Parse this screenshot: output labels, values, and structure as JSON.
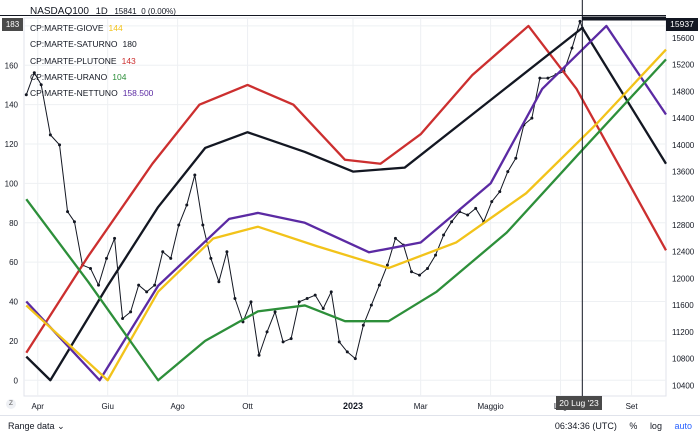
{
  "header": {
    "symbol": "NASDAQ100",
    "interval": "1D",
    "last": "15841",
    "change": "0 (0.00%)"
  },
  "indicators": [
    {
      "name": "CP:MARTE-GIOVE",
      "value": "144",
      "color": "#f2c31a"
    },
    {
      "name": "CP:MARTE-SATURNO",
      "value": "180",
      "color": "#131722"
    },
    {
      "name": "CP:MARTE-PLUTONE",
      "value": "143",
      "color": "#cc2f2f"
    },
    {
      "name": "CP:MARTE-URANO",
      "value": "104",
      "color": "#2d8f3a"
    },
    {
      "name": "CP:MARTE-NETTUNO",
      "value": "158.500",
      "color": "#5b2aa3"
    }
  ],
  "markers": {
    "left_value": "183",
    "price_label": "15937",
    "date_label": "20 Lug '23"
  },
  "bottom_bar": {
    "range_label": "Range data",
    "time": "06:34:36 (UTC)",
    "percent": "%",
    "log": "log",
    "auto": "auto",
    "z_button": "Z"
  },
  "chart_data": {
    "type": "line",
    "x_ticks": [
      "Apr",
      "Giu",
      "Ago",
      "Ott",
      "2023",
      "Mar",
      "Maggio",
      "Lug",
      "Set"
    ],
    "x_tick_dates": [
      "2022-04-01",
      "2022-06-01",
      "2022-08-01",
      "2022-10-01",
      "2023-01-01",
      "2023-03-01",
      "2023-05-01",
      "2023-07-01",
      "2023-09-01"
    ],
    "x_range": [
      "2022-03-20",
      "2023-10-01"
    ],
    "left_axis": {
      "ticks": [
        0,
        20,
        40,
        60,
        80,
        100,
        120,
        140,
        160,
        180
      ],
      "range": [
        -8,
        182
      ]
    },
    "right_axis": {
      "ticks": [
        10400,
        10800,
        11200,
        11600,
        12000,
        12400,
        12800,
        13200,
        13600,
        14000,
        14400,
        14800,
        15200,
        15600
      ],
      "range": [
        10240,
        15840
      ]
    },
    "grid": true,
    "series": [
      {
        "name": "NASDAQ100",
        "type": "price",
        "axis": "right",
        "color": "#131722",
        "points": [
          [
            "2022-03-22",
            14750
          ],
          [
            "2022-03-29",
            15080
          ],
          [
            "2022-04-04",
            14900
          ],
          [
            "2022-04-12",
            14150
          ],
          [
            "2022-04-20",
            14000
          ],
          [
            "2022-04-27",
            13000
          ],
          [
            "2022-05-03",
            12850
          ],
          [
            "2022-05-10",
            12200
          ],
          [
            "2022-05-17",
            12150
          ],
          [
            "2022-05-24",
            11900
          ],
          [
            "2022-05-31",
            12300
          ],
          [
            "2022-06-07",
            12600
          ],
          [
            "2022-06-14",
            11400
          ],
          [
            "2022-06-21",
            11500
          ],
          [
            "2022-06-28",
            11900
          ],
          [
            "2022-07-05",
            11800
          ],
          [
            "2022-07-12",
            11900
          ],
          [
            "2022-07-19",
            12400
          ],
          [
            "2022-07-26",
            12300
          ],
          [
            "2022-08-02",
            12800
          ],
          [
            "2022-08-09",
            13100
          ],
          [
            "2022-08-16",
            13550
          ],
          [
            "2022-08-23",
            12800
          ],
          [
            "2022-08-30",
            12300
          ],
          [
            "2022-09-06",
            11950
          ],
          [
            "2022-09-13",
            12400
          ],
          [
            "2022-09-20",
            11700
          ],
          [
            "2022-09-27",
            11350
          ],
          [
            "2022-10-04",
            11650
          ],
          [
            "2022-10-11",
            10850
          ],
          [
            "2022-10-18",
            11200
          ],
          [
            "2022-10-25",
            11500
          ],
          [
            "2022-11-01",
            11050
          ],
          [
            "2022-11-08",
            11100
          ],
          [
            "2022-11-15",
            11650
          ],
          [
            "2022-11-22",
            11700
          ],
          [
            "2022-11-29",
            11750
          ],
          [
            "2022-12-06",
            11550
          ],
          [
            "2022-12-13",
            11800
          ],
          [
            "2022-12-20",
            11050
          ],
          [
            "2022-12-27",
            10900
          ],
          [
            "2023-01-03",
            10800
          ],
          [
            "2023-01-10",
            11300
          ],
          [
            "2023-01-17",
            11600
          ],
          [
            "2023-01-24",
            11900
          ],
          [
            "2023-01-31",
            12200
          ],
          [
            "2023-02-07",
            12600
          ],
          [
            "2023-02-14",
            12500
          ],
          [
            "2023-02-21",
            12100
          ],
          [
            "2023-02-28",
            12050
          ],
          [
            "2023-03-07",
            12150
          ],
          [
            "2023-03-14",
            12350
          ],
          [
            "2023-03-21",
            12650
          ],
          [
            "2023-03-28",
            12850
          ],
          [
            "2023-04-04",
            13000
          ],
          [
            "2023-04-11",
            12950
          ],
          [
            "2023-04-18",
            13050
          ],
          [
            "2023-04-25",
            12850
          ],
          [
            "2023-05-02",
            13150
          ],
          [
            "2023-05-09",
            13300
          ],
          [
            "2023-05-16",
            13600
          ],
          [
            "2023-05-23",
            13800
          ],
          [
            "2023-05-30",
            14300
          ],
          [
            "2023-06-06",
            14400
          ],
          [
            "2023-06-13",
            15000
          ],
          [
            "2023-06-20",
            15000
          ],
          [
            "2023-06-27",
            15050
          ],
          [
            "2023-07-04",
            15100
          ],
          [
            "2023-07-11",
            15450
          ],
          [
            "2023-07-18",
            15850
          ],
          [
            "2023-07-20",
            15750
          ]
        ]
      },
      {
        "name": "CP:MARTE-PLUTONE",
        "axis": "left",
        "color": "#cc2f2f",
        "points": [
          [
            "2022-03-22",
            14
          ],
          [
            "2022-05-15",
            63
          ],
          [
            "2022-07-10",
            110
          ],
          [
            "2022-08-20",
            140
          ],
          [
            "2022-10-01",
            150
          ],
          [
            "2022-11-10",
            140
          ],
          [
            "2022-12-25",
            112
          ],
          [
            "2023-01-25",
            110
          ],
          [
            "2023-03-01",
            125
          ],
          [
            "2023-04-15",
            155
          ],
          [
            "2023-06-03",
            180
          ],
          [
            "2023-07-15",
            148
          ],
          [
            "2023-10-01",
            66
          ]
        ]
      },
      {
        "name": "CP:MARTE-SATURNO",
        "axis": "left",
        "color": "#131722",
        "points": [
          [
            "2022-03-22",
            12
          ],
          [
            "2022-04-12",
            0
          ],
          [
            "2022-06-01",
            48
          ],
          [
            "2022-07-15",
            88
          ],
          [
            "2022-08-25",
            118
          ],
          [
            "2022-10-01",
            126
          ],
          [
            "2022-11-20",
            116
          ],
          [
            "2023-01-01",
            106
          ],
          [
            "2023-02-15",
            108
          ],
          [
            "2023-04-15",
            135
          ],
          [
            "2023-07-20",
            179
          ],
          [
            "2023-10-01",
            110
          ]
        ]
      },
      {
        "name": "CP:MARTE-NETTUNO",
        "axis": "left",
        "color": "#5b2aa3",
        "points": [
          [
            "2022-03-22",
            40
          ],
          [
            "2022-04-15",
            25
          ],
          [
            "2022-05-25",
            0
          ],
          [
            "2022-07-15",
            48
          ],
          [
            "2022-09-15",
            82
          ],
          [
            "2022-10-10",
            85
          ],
          [
            "2022-11-20",
            80
          ],
          [
            "2023-01-15",
            65
          ],
          [
            "2023-03-01",
            70
          ],
          [
            "2023-05-01",
            100
          ],
          [
            "2023-06-15",
            148
          ],
          [
            "2023-08-10",
            180
          ],
          [
            "2023-10-01",
            135
          ]
        ]
      },
      {
        "name": "CP:MARTE-GIOVE",
        "axis": "left",
        "color": "#f2c31a",
        "points": [
          [
            "2022-03-22",
            38
          ],
          [
            "2022-06-01",
            0
          ],
          [
            "2022-07-15",
            45
          ],
          [
            "2022-09-01",
            72
          ],
          [
            "2022-10-10",
            78
          ],
          [
            "2022-12-01",
            68
          ],
          [
            "2023-02-01",
            57
          ],
          [
            "2023-04-01",
            70
          ],
          [
            "2023-06-01",
            95
          ],
          [
            "2023-08-01",
            130
          ],
          [
            "2023-10-01",
            168
          ]
        ]
      },
      {
        "name": "CP:MARTE-URANO",
        "axis": "left",
        "color": "#2d8f3a",
        "points": [
          [
            "2022-03-22",
            92
          ],
          [
            "2022-05-15",
            50
          ],
          [
            "2022-07-15",
            0
          ],
          [
            "2022-08-25",
            20
          ],
          [
            "2022-10-10",
            35
          ],
          [
            "2022-11-20",
            38
          ],
          [
            "2022-12-25",
            30
          ],
          [
            "2023-02-01",
            30
          ],
          [
            "2023-03-15",
            45
          ],
          [
            "2023-05-15",
            75
          ],
          [
            "2023-07-20",
            117
          ],
          [
            "2023-10-01",
            163
          ]
        ]
      }
    ],
    "crosshair": {
      "date": "2023-07-20",
      "price": 15937
    }
  }
}
